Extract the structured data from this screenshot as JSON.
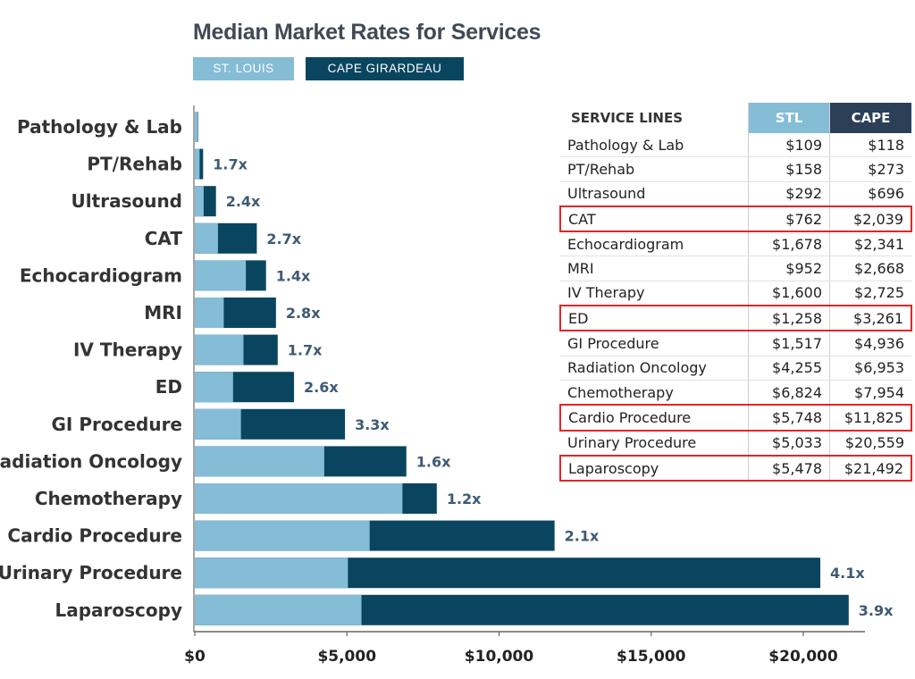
{
  "chart_data": {
    "type": "bar",
    "orientation": "horizontal",
    "stacked_overlay": true,
    "title": "Median Market Rates for Services",
    "categories": [
      "Pathology & Lab",
      "PT/Rehab",
      "Ultrasound",
      "CAT",
      "Echocardiogram",
      "MRI",
      "IV Therapy",
      "ED",
      "GI Procedure",
      "Radiation Oncology",
      "Chemotherapy",
      "Cardio Procedure",
      "Urinary Procedure",
      "Laparoscopy"
    ],
    "series": [
      {
        "name": "ST. LOUIS",
        "color": "#85bcd6",
        "values": [
          109,
          158,
          292,
          762,
          1678,
          952,
          1600,
          1258,
          1517,
          4255,
          6824,
          5748,
          5033,
          5478
        ]
      },
      {
        "name": "CAPE GIRARDEAU",
        "color": "#0a4560",
        "values": [
          118,
          273,
          696,
          2039,
          2341,
          2668,
          2725,
          3261,
          4936,
          6953,
          7954,
          11825,
          20559,
          21492
        ]
      }
    ],
    "ratio_labels": [
      "",
      "1.7x",
      "2.4x",
      "2.7x",
      "1.4x",
      "2.8x",
      "1.7x",
      "2.6x",
      "3.3x",
      "1.6x",
      "1.2x",
      "2.1x",
      "4.1x",
      "3.9x"
    ],
    "xlim": [
      0,
      22000
    ],
    "x_ticks": [
      0,
      5000,
      10000,
      15000,
      20000
    ],
    "x_tick_labels": [
      "$0",
      "$5,000",
      "$10,000",
      "$15,000",
      "$20,000"
    ],
    "grid": false,
    "legend_position": "top"
  },
  "table": {
    "headers": [
      "SERVICE LINES",
      "STL",
      "CAPE"
    ],
    "header_colors": {
      "stl": "#85bcd6",
      "cape": "#2b3f57"
    },
    "highlight_color": "#e0262a",
    "rows": [
      {
        "service": "Pathology & Lab",
        "stl": "$109",
        "cape": "$118",
        "highlighted": false
      },
      {
        "service": "PT/Rehab",
        "stl": "$158",
        "cape": "$273",
        "highlighted": false
      },
      {
        "service": "Ultrasound",
        "stl": "$292",
        "cape": "$696",
        "highlighted": false
      },
      {
        "service": "CAT",
        "stl": "$762",
        "cape": "$2,039",
        "highlighted": true
      },
      {
        "service": "Echocardiogram",
        "stl": "$1,678",
        "cape": "$2,341",
        "highlighted": false
      },
      {
        "service": "MRI",
        "stl": "$952",
        "cape": "$2,668",
        "highlighted": false
      },
      {
        "service": "IV Therapy",
        "stl": "$1,600",
        "cape": "$2,725",
        "highlighted": false
      },
      {
        "service": "ED",
        "stl": "$1,258",
        "cape": "$3,261",
        "highlighted": true
      },
      {
        "service": "GI Procedure",
        "stl": "$1,517",
        "cape": "$4,936",
        "highlighted": false
      },
      {
        "service": "Radiation Oncology",
        "stl": "$4,255",
        "cape": "$6,953",
        "highlighted": false
      },
      {
        "service": "Chemotherapy",
        "stl": "$6,824",
        "cape": "$7,954",
        "highlighted": false
      },
      {
        "service": "Cardio Procedure",
        "stl": "$5,748",
        "cape": "$11,825",
        "highlighted": true
      },
      {
        "service": "Urinary Procedure",
        "stl": "$5,033",
        "cape": "$20,559",
        "highlighted": false
      },
      {
        "service": "Laparoscopy",
        "stl": "$5,478",
        "cape": "$21,492",
        "highlighted": true
      }
    ]
  }
}
